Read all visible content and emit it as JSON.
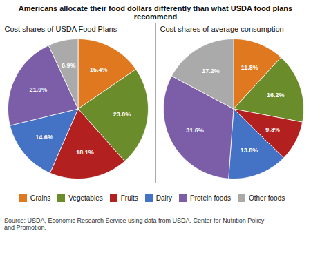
{
  "title": "Americans allocate their food dollars differently than what USDA food plans recommend",
  "source": "Source: USDA, Economic Research Service using data from USDA, Center for Nutrition Policy\nand Promotion.",
  "chart_data": [
    {
      "type": "pie",
      "title": "Cost shares of USDA Food Plans",
      "categories": [
        "Grains",
        "Vegetables",
        "Fruits",
        "Dairy",
        "Protein foods",
        "Other foods"
      ],
      "values": [
        15.4,
        23.0,
        18.1,
        14.6,
        21.9,
        6.9
      ],
      "value_labels": [
        "15.4%",
        "23.0%",
        "18.1%",
        "14.6%",
        "21.9%",
        "6.9%"
      ],
      "colors": [
        "#E07820",
        "#6B8C2A",
        "#B22020",
        "#4472C4",
        "#7B5EA7",
        "#AAAAAA"
      ],
      "data_labels": true,
      "legend": "bottom"
    },
    {
      "type": "pie",
      "title": "Cost shares of average consumption",
      "categories": [
        "Grains",
        "Vegetables",
        "Fruits",
        "Dairy",
        "Protein foods",
        "Other foods"
      ],
      "values": [
        11.8,
        16.2,
        9.3,
        13.8,
        31.6,
        17.2
      ],
      "value_labels": [
        "11.8%",
        "16.2%",
        "9.3%",
        "13.8%",
        "31.6%",
        "17.2%"
      ],
      "colors": [
        "#E07820",
        "#6B8C2A",
        "#B22020",
        "#4472C4",
        "#7B5EA7",
        "#AAAAAA"
      ],
      "data_labels": true
    }
  ]
}
